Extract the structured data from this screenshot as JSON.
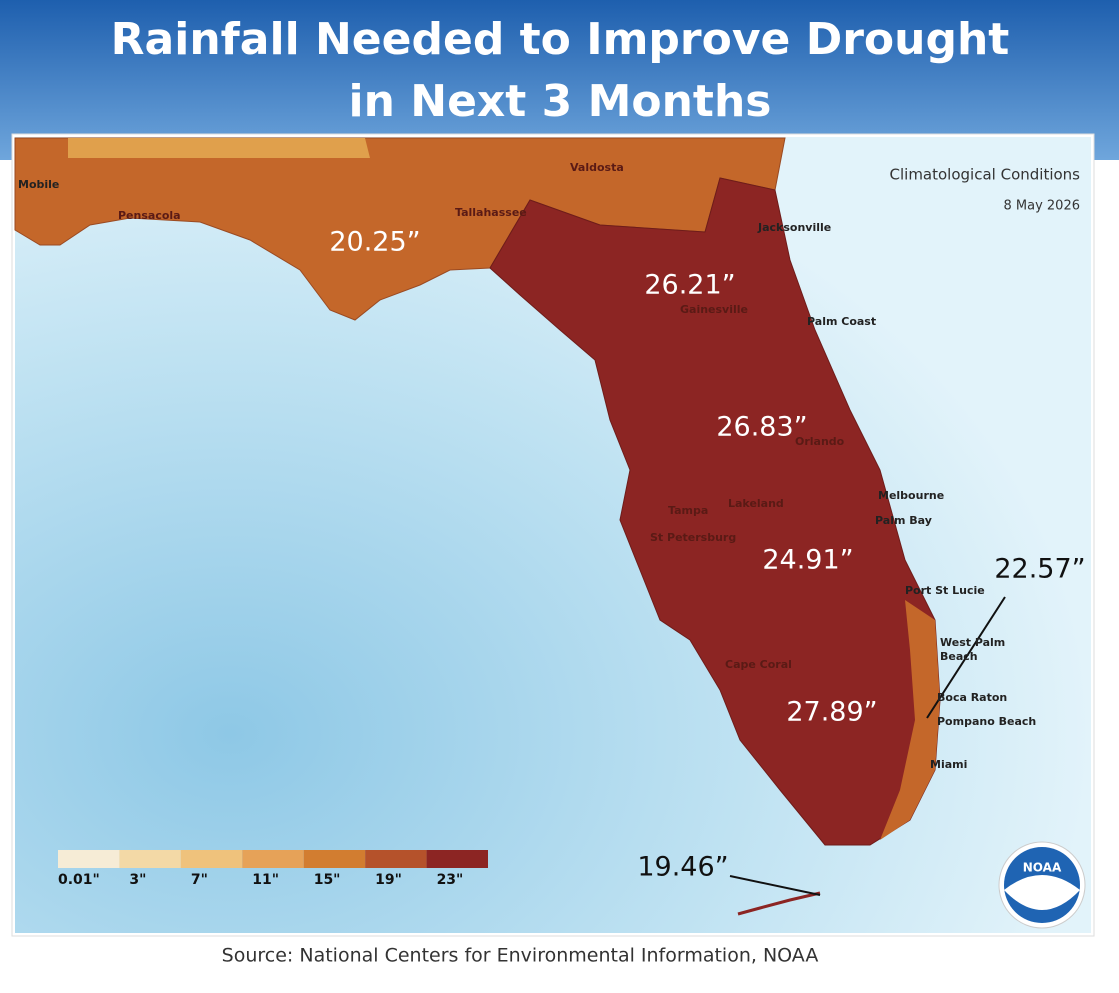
{
  "header": {
    "title_line1": "Rainfall Needed to Improve Drought",
    "title_line2": "in Next 3 Months"
  },
  "map": {
    "conditions": "Climatological Conditions",
    "date": "8 May 2026",
    "regions": [
      {
        "value": "20.25”"
      },
      {
        "value": "26.21”"
      },
      {
        "value": "26.83”"
      },
      {
        "value": "24.91”"
      },
      {
        "value": "22.57”"
      },
      {
        "value": "27.89”"
      },
      {
        "value": "19.46”"
      }
    ],
    "cities": [
      "Mobile",
      "Pensacola",
      "Tallahassee",
      "Valdosta",
      "Jacksonville",
      "Palm Coast",
      "Gainesville",
      "Orlando",
      "Tampa",
      "Lakeland",
      "St Petersburg",
      "Melbourne",
      "Palm Bay",
      "Port St Lucie",
      "West Palm",
      "Beach",
      "Cape Coral",
      "Boca Raton",
      "Pompano Beach",
      "Miami"
    ],
    "legend": {
      "labels": [
        "0.01\"",
        "3\"",
        "7\"",
        "11\"",
        "15\"",
        "19\"",
        "23\""
      ],
      "colors": [
        "#f6ecd6",
        "#f3d9a6",
        "#efc27c",
        "#e6a258",
        "#d27d30",
        "#b5522b",
        "#8c2523"
      ]
    },
    "logo": "NOAA"
  },
  "source": "Source: National Centers for Environmental Information, NOAA"
}
